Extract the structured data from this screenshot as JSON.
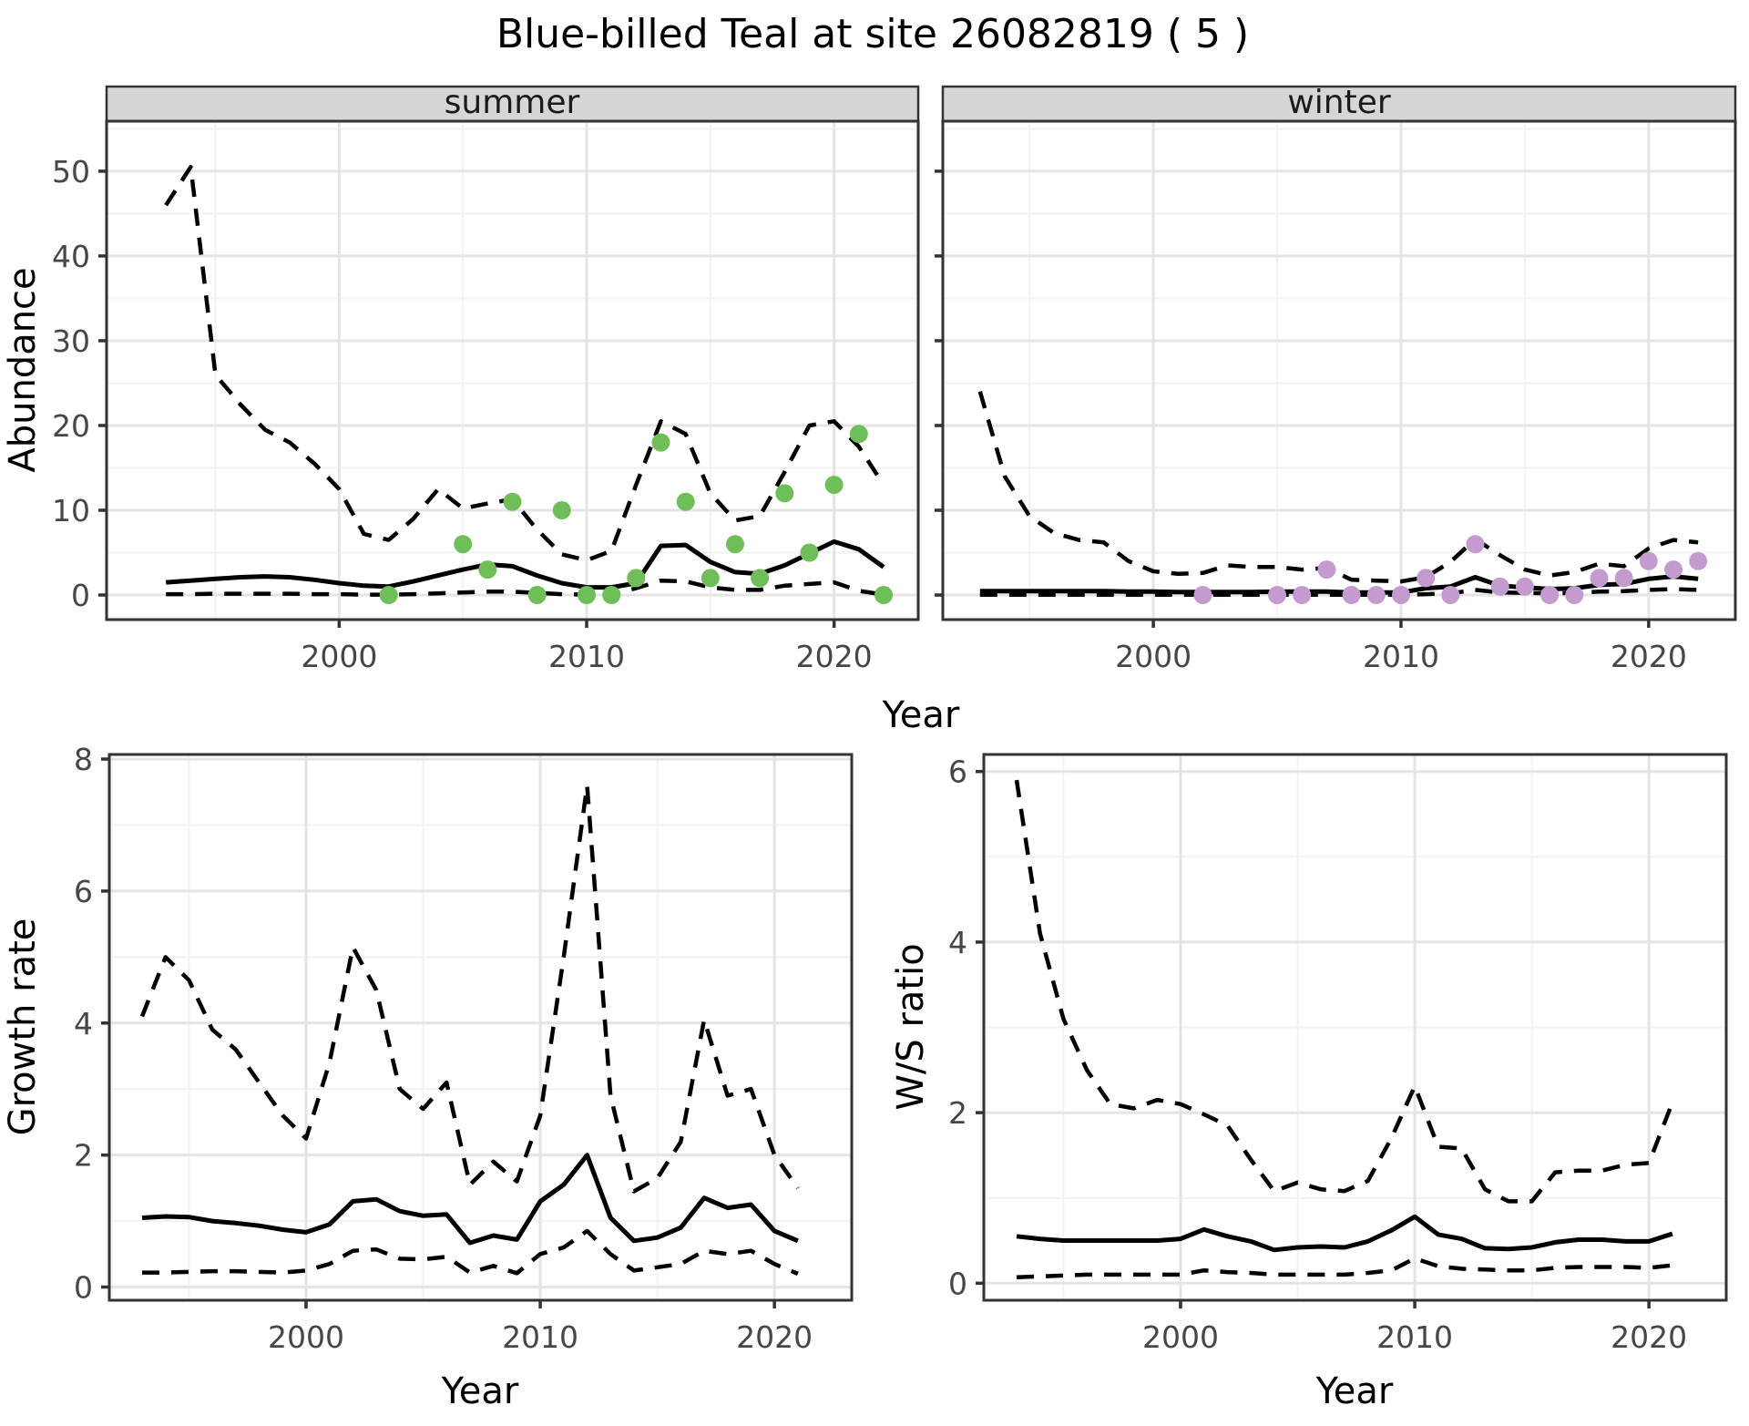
{
  "title": "Blue-billed Teal at site 26082819 ( 5 )",
  "colors": {
    "background": "#FFFFFF",
    "panel_background": "#FFFFFF",
    "grid_major": "#E4E4E4",
    "grid_minor": "#F2F2F2",
    "panel_border": "#333333",
    "tick_mark": "#333333",
    "tick_label": "#464646",
    "strip_background": "#D6D6D6",
    "line": "#000000",
    "summer_point": "#6FBE59",
    "winter_point": "#C49BCE"
  },
  "chart_data": [
    {
      "id": "abundance-summer",
      "type": "line",
      "facet_label": "summer",
      "xlabel": "Year",
      "ylabel": "Abundance",
      "xlim": [
        1990.6,
        2023.4
      ],
      "ylim": [
        -2.9,
        55.9
      ],
      "xticks": [
        2000,
        2010,
        2020
      ],
      "xticks_minor": [
        1995,
        2005,
        2015
      ],
      "yticks": [
        0,
        10,
        20,
        30,
        40,
        50
      ],
      "yticks_minor": [
        5,
        15,
        25,
        35,
        45,
        55
      ],
      "point_color": "#6FBE59",
      "years": [
        1993,
        1994,
        1995,
        1996,
        1997,
        1998,
        1999,
        2000,
        2001,
        2002,
        2003,
        2004,
        2005,
        2006,
        2007,
        2008,
        2009,
        2010,
        2011,
        2012,
        2013,
        2014,
        2015,
        2016,
        2017,
        2018,
        2019,
        2020,
        2021,
        2022
      ],
      "series": [
        {
          "name": "mean",
          "style": "solid",
          "values": [
            1.5,
            1.7,
            1.9,
            2.1,
            2.2,
            2.1,
            1.8,
            1.4,
            1.1,
            1.0,
            1.6,
            2.3,
            3.0,
            3.6,
            3.4,
            2.3,
            1.4,
            0.9,
            0.9,
            1.4,
            5.8,
            5.9,
            3.9,
            2.7,
            2.5,
            3.5,
            4.9,
            6.3,
            5.4,
            3.3
          ]
        },
        {
          "name": "upper_ci",
          "style": "dashed",
          "values": [
            46,
            50.5,
            26,
            22.5,
            19.5,
            18,
            15.5,
            12.5,
            7.2,
            6.5,
            9.0,
            12.5,
            10.2,
            10.8,
            11.3,
            7.7,
            4.8,
            4.1,
            5.2,
            13,
            20.5,
            19,
            12,
            8.8,
            9.3,
            14.5,
            20,
            20.5,
            17.5,
            13
          ]
        },
        {
          "name": "lower_ci",
          "style": "dashed",
          "values": [
            0.1,
            0.1,
            0.15,
            0.15,
            0.15,
            0.15,
            0.1,
            0.1,
            0.05,
            0.05,
            0.1,
            0.2,
            0.3,
            0.4,
            0.4,
            0.25,
            0.1,
            0.05,
            0.05,
            0.8,
            1.7,
            1.6,
            0.9,
            0.6,
            0.6,
            1.1,
            1.3,
            1.5,
            0.5,
            0.05
          ]
        }
      ],
      "obs": {
        "name": "observed-counts",
        "years": [
          2002,
          2005,
          2006,
          2007,
          2008,
          2009,
          2010,
          2011,
          2012,
          2013,
          2014,
          2015,
          2016,
          2017,
          2018,
          2019,
          2020,
          2021,
          2022
        ],
        "values": [
          0,
          6,
          3,
          11,
          0,
          10,
          0,
          0,
          2,
          18,
          11,
          2,
          6,
          2,
          12,
          5,
          13,
          19,
          0
        ]
      }
    },
    {
      "id": "abundance-winter",
      "type": "line",
      "facet_label": "winter",
      "xlabel": "Year",
      "ylabel": "Abundance",
      "xlim": [
        1991.5,
        2023.5
      ],
      "ylim": [
        -2.9,
        55.9
      ],
      "xticks": [
        2000,
        2010,
        2020
      ],
      "xticks_minor": [
        1995,
        2005,
        2015
      ],
      "yticks": [
        0,
        10,
        20,
        30,
        40,
        50
      ],
      "yticks_minor": [
        5,
        15,
        25,
        35,
        45,
        55
      ],
      "point_color": "#C49BCE",
      "years": [
        1993,
        1994,
        1995,
        1996,
        1997,
        1998,
        1999,
        2000,
        2001,
        2002,
        2003,
        2004,
        2005,
        2006,
        2007,
        2008,
        2009,
        2010,
        2011,
        2012,
        2013,
        2014,
        2015,
        2016,
        2017,
        2018,
        2019,
        2020,
        2021,
        2022
      ],
      "series": [
        {
          "name": "mean",
          "style": "solid",
          "values": [
            0.45,
            0.45,
            0.45,
            0.45,
            0.45,
            0.45,
            0.4,
            0.4,
            0.35,
            0.35,
            0.35,
            0.35,
            0.4,
            0.4,
            0.4,
            0.3,
            0.3,
            0.3,
            0.8,
            1.0,
            2.1,
            1.1,
            0.9,
            0.7,
            0.8,
            1.2,
            1.3,
            1.9,
            2.2,
            1.9
          ]
        },
        {
          "name": "upper_ci",
          "style": "dashed",
          "values": [
            24,
            14,
            9.3,
            7.3,
            6.5,
            6.2,
            4.0,
            2.8,
            2.5,
            2.6,
            3.5,
            3.3,
            3.3,
            3.0,
            3.2,
            1.8,
            1.7,
            1.6,
            2.1,
            3.9,
            6.6,
            4.7,
            3.0,
            2.3,
            2.7,
            3.7,
            3.4,
            5.5,
            6.5,
            6.2
          ]
        },
        {
          "name": "lower_ci",
          "style": "dashed",
          "values": [
            0.02,
            0.02,
            0.02,
            0.02,
            0.02,
            0.02,
            0.02,
            0.02,
            0.02,
            0.02,
            0.02,
            0.02,
            0.02,
            0.02,
            0.02,
            0.02,
            0.02,
            0.02,
            0.1,
            0.2,
            0.6,
            0.3,
            0.25,
            0.2,
            0.25,
            0.4,
            0.45,
            0.6,
            0.7,
            0.6
          ]
        }
      ],
      "obs": {
        "name": "observed-counts",
        "years": [
          2002,
          2005,
          2006,
          2007,
          2008,
          2009,
          2010,
          2011,
          2012,
          2013,
          2014,
          2015,
          2016,
          2017,
          2018,
          2019,
          2020,
          2021,
          2022
        ],
        "values": [
          0,
          0,
          0,
          3,
          0,
          0,
          0,
          2,
          0,
          6,
          1,
          1,
          0,
          0,
          2,
          2,
          4,
          3,
          4
        ]
      }
    },
    {
      "id": "growth-rate",
      "type": "line",
      "facet_label": "",
      "xlabel": "Year",
      "ylabel": "Growth rate",
      "xlim": [
        1991.6,
        2023.3
      ],
      "ylim": [
        -0.2,
        8.07
      ],
      "xticks": [
        2000,
        2010,
        2020
      ],
      "xticks_minor": [
        1995,
        2005,
        2015
      ],
      "yticks": [
        0,
        2,
        4,
        6,
        8
      ],
      "yticks_minor": [
        1,
        3,
        5,
        7
      ],
      "point_color": null,
      "years": [
        1993,
        1994,
        1995,
        1996,
        1997,
        1998,
        1999,
        2000,
        2001,
        2002,
        2003,
        2004,
        2005,
        2006,
        2007,
        2008,
        2009,
        2010,
        2011,
        2012,
        2013,
        2014,
        2015,
        2016,
        2017,
        2018,
        2019,
        2020,
        2021
      ],
      "series": [
        {
          "name": "mean",
          "style": "solid",
          "values": [
            1.05,
            1.07,
            1.06,
            1.0,
            0.97,
            0.93,
            0.87,
            0.83,
            0.95,
            1.3,
            1.33,
            1.15,
            1.08,
            1.1,
            0.67,
            0.78,
            0.72,
            1.3,
            1.55,
            2.0,
            1.05,
            0.7,
            0.75,
            0.9,
            1.35,
            1.2,
            1.25,
            0.85,
            0.7
          ]
        },
        {
          "name": "upper_ci",
          "style": "dashed",
          "values": [
            4.1,
            5.0,
            4.65,
            3.9,
            3.6,
            3.1,
            2.6,
            2.25,
            3.4,
            5.15,
            4.5,
            3.0,
            2.7,
            3.1,
            1.55,
            1.9,
            1.6,
            2.6,
            5.0,
            7.6,
            2.9,
            1.45,
            1.65,
            2.2,
            4.05,
            2.9,
            3.0,
            2.0,
            1.5
          ]
        },
        {
          "name": "lower_ci",
          "style": "dashed",
          "values": [
            0.22,
            0.22,
            0.23,
            0.24,
            0.24,
            0.23,
            0.22,
            0.25,
            0.35,
            0.55,
            0.57,
            0.43,
            0.42,
            0.46,
            0.22,
            0.32,
            0.21,
            0.5,
            0.6,
            0.85,
            0.5,
            0.25,
            0.3,
            0.35,
            0.55,
            0.5,
            0.55,
            0.35,
            0.2
          ]
        }
      ],
      "obs": null
    },
    {
      "id": "ws-ratio",
      "type": "line",
      "facet_label": "",
      "xlabel": "Year",
      "ylabel": "W/S ratio",
      "xlim": [
        1991.6,
        2023.3
      ],
      "ylim": [
        -0.2,
        6.2
      ],
      "xticks": [
        2000,
        2010,
        2020
      ],
      "xticks_minor": [
        1995,
        2005,
        2015
      ],
      "yticks": [
        0,
        2,
        4,
        6
      ],
      "yticks_minor": [
        1,
        3,
        5
      ],
      "point_color": null,
      "years": [
        1993,
        1994,
        1995,
        1996,
        1997,
        1998,
        1999,
        2000,
        2001,
        2002,
        2003,
        2004,
        2005,
        2006,
        2007,
        2008,
        2009,
        2010,
        2011,
        2012,
        2013,
        2014,
        2015,
        2016,
        2017,
        2018,
        2019,
        2020,
        2021
      ],
      "series": [
        {
          "name": "mean",
          "style": "solid",
          "values": [
            0.55,
            0.52,
            0.5,
            0.5,
            0.5,
            0.5,
            0.5,
            0.52,
            0.63,
            0.55,
            0.49,
            0.39,
            0.42,
            0.43,
            0.42,
            0.49,
            0.62,
            0.78,
            0.57,
            0.52,
            0.41,
            0.4,
            0.42,
            0.48,
            0.51,
            0.51,
            0.49,
            0.49,
            0.58
          ]
        },
        {
          "name": "upper_ci",
          "style": "dashed",
          "values": [
            5.9,
            4.1,
            3.1,
            2.5,
            2.1,
            2.05,
            2.15,
            2.1,
            1.98,
            1.85,
            1.45,
            1.08,
            1.18,
            1.1,
            1.08,
            1.2,
            1.7,
            2.31,
            1.6,
            1.58,
            1.1,
            0.96,
            0.96,
            1.3,
            1.32,
            1.32,
            1.39,
            1.41,
            2.12
          ]
        },
        {
          "name": "lower_ci",
          "style": "dashed",
          "values": [
            0.07,
            0.08,
            0.09,
            0.1,
            0.1,
            0.1,
            0.1,
            0.1,
            0.15,
            0.13,
            0.12,
            0.1,
            0.1,
            0.1,
            0.1,
            0.12,
            0.15,
            0.29,
            0.2,
            0.17,
            0.16,
            0.15,
            0.15,
            0.18,
            0.19,
            0.19,
            0.19,
            0.18,
            0.21
          ]
        }
      ],
      "obs": null
    }
  ]
}
